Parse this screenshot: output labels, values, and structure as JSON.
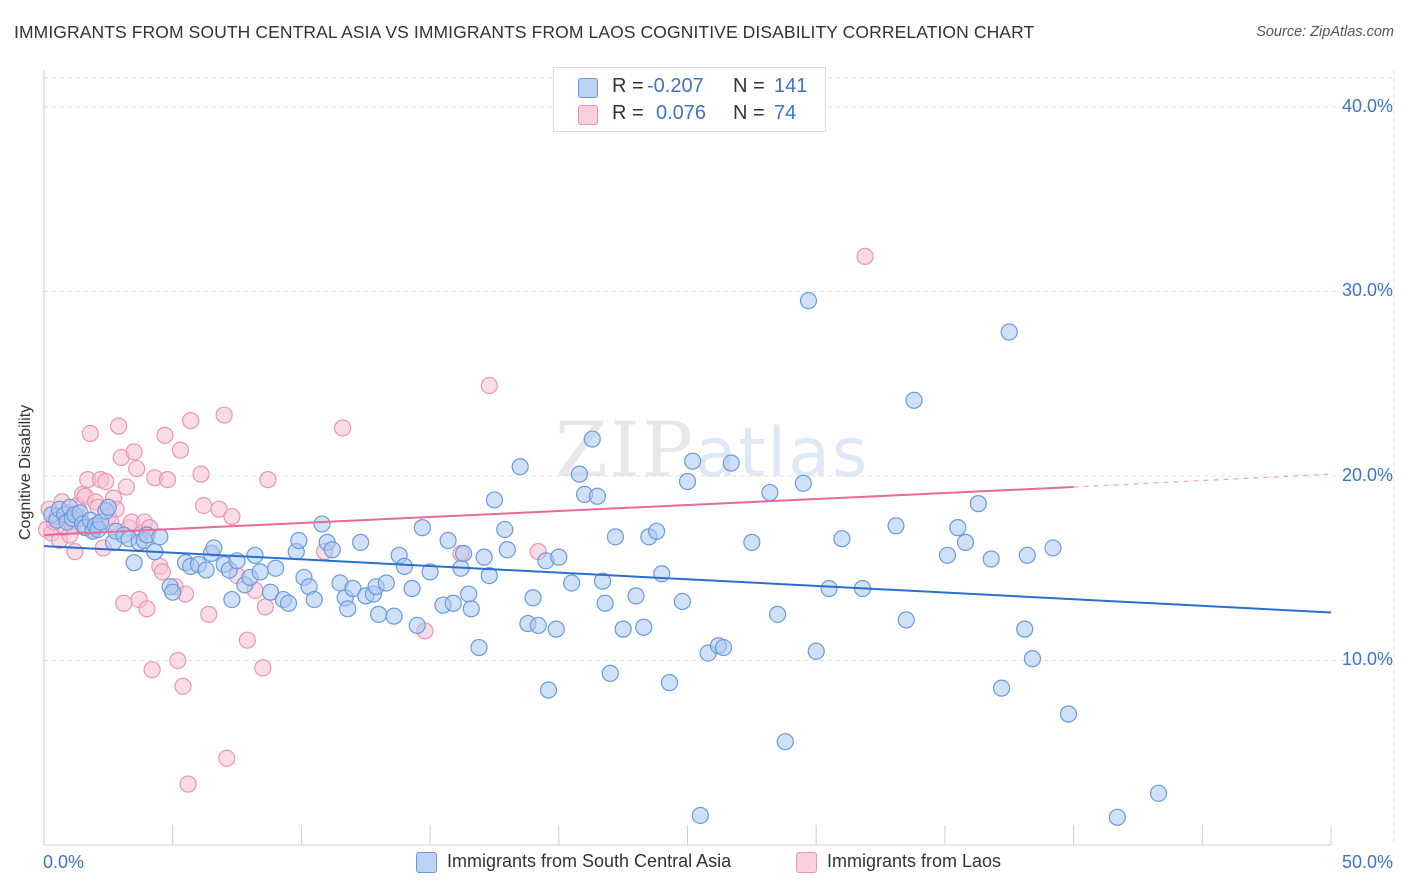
{
  "title": "IMMIGRANTS FROM SOUTH CENTRAL ASIA VS IMMIGRANTS FROM LAOS COGNITIVE DISABILITY CORRELATION CHART",
  "source": "Source: ZipAtlas.com",
  "watermark": {
    "zip": "ZIP",
    "atlas": "atlas"
  },
  "legend": {
    "rows": [
      {
        "r_label": "R =",
        "r_value": "-0.207",
        "n_label": "N =",
        "n_value": "141"
      },
      {
        "r_label": "R =",
        "r_value": "0.076",
        "n_label": "N =",
        "n_value": "74"
      }
    ]
  },
  "bottom_legend": [
    "Immigrants from South Central Asia",
    "Immigrants from Laos"
  ],
  "colors": {
    "blue_fill": "#a9c6ee",
    "blue_stroke": "#6a9be0",
    "blue_line": "#2a6fce",
    "pink_fill": "#f6bfd1",
    "pink_stroke": "#ee95b3",
    "pink_line": "#e8699a",
    "tick_text": "#3d74c9"
  },
  "chart_data": {
    "type": "scatter",
    "title": "IMMIGRANTS FROM SOUTH CENTRAL ASIA VS IMMIGRANTS FROM LAOS COGNITIVE DISABILITY CORRELATION CHART",
    "xlabel": "",
    "ylabel": "Cognitive Disability",
    "xlim": [
      0,
      50
    ],
    "ylim": [
      0,
      42
    ],
    "x_tick_labels": [
      "0.0%",
      "50.0%"
    ],
    "y_ticks": [
      10,
      20,
      30,
      40
    ],
    "y_tick_labels": [
      "10.0%",
      "20.0%",
      "30.0%",
      "40.0%"
    ],
    "grid": true,
    "legend_position": "top-center",
    "series": [
      {
        "name": "Immigrants from South Central Asia",
        "R": -0.207,
        "N": 141,
        "trend": {
          "x": [
            0,
            50
          ],
          "y": [
            16.2,
            12.6
          ],
          "dashed_extension": false
        },
        "points": [
          [
            0.3,
            17.9
          ],
          [
            0.5,
            17.6
          ],
          [
            0.6,
            18.2
          ],
          [
            0.8,
            17.9
          ],
          [
            0.9,
            17.5
          ],
          [
            1.0,
            18.3
          ],
          [
            1.1,
            17.7
          ],
          [
            1.2,
            17.9
          ],
          [
            1.4,
            18.0
          ],
          [
            1.5,
            17.4
          ],
          [
            1.6,
            17.2
          ],
          [
            1.8,
            17.6
          ],
          [
            1.9,
            17.0
          ],
          [
            2.0,
            17.3
          ],
          [
            2.1,
            17.1
          ],
          [
            2.2,
            17.5
          ],
          [
            2.4,
            18.1
          ],
          [
            2.5,
            18.3
          ],
          [
            2.7,
            16.4
          ],
          [
            2.8,
            17.0
          ],
          [
            3.1,
            16.8
          ],
          [
            3.3,
            16.6
          ],
          [
            3.5,
            15.3
          ],
          [
            3.7,
            16.4
          ],
          [
            3.9,
            16.5
          ],
          [
            4.0,
            16.8
          ],
          [
            4.3,
            15.9
          ],
          [
            4.5,
            16.7
          ],
          [
            4.9,
            14.0
          ],
          [
            5.0,
            13.7
          ],
          [
            5.5,
            15.3
          ],
          [
            5.7,
            15.1
          ],
          [
            6.0,
            15.2
          ],
          [
            6.3,
            14.9
          ],
          [
            6.5,
            15.8
          ],
          [
            6.6,
            16.1
          ],
          [
            7.0,
            15.2
          ],
          [
            7.2,
            14.9
          ],
          [
            7.3,
            13.3
          ],
          [
            7.5,
            15.4
          ],
          [
            7.8,
            14.1
          ],
          [
            8.0,
            14.5
          ],
          [
            8.2,
            15.7
          ],
          [
            8.4,
            14.8
          ],
          [
            8.8,
            13.7
          ],
          [
            9.0,
            15.0
          ],
          [
            9.3,
            13.3
          ],
          [
            9.5,
            13.1
          ],
          [
            9.8,
            15.9
          ],
          [
            9.9,
            16.5
          ],
          [
            10.1,
            14.5
          ],
          [
            10.3,
            14.0
          ],
          [
            10.5,
            13.3
          ],
          [
            10.8,
            17.4
          ],
          [
            11.0,
            16.4
          ],
          [
            11.2,
            16.0
          ],
          [
            11.5,
            14.2
          ],
          [
            11.7,
            13.4
          ],
          [
            11.8,
            12.8
          ],
          [
            12.0,
            13.9
          ],
          [
            12.3,
            16.4
          ],
          [
            12.5,
            13.5
          ],
          [
            12.8,
            13.6
          ],
          [
            12.9,
            14.0
          ],
          [
            13.0,
            12.5
          ],
          [
            13.3,
            14.2
          ],
          [
            13.6,
            12.4
          ],
          [
            13.8,
            15.7
          ],
          [
            14.0,
            15.1
          ],
          [
            14.3,
            13.9
          ],
          [
            14.5,
            11.9
          ],
          [
            14.7,
            17.2
          ],
          [
            15.0,
            14.8
          ],
          [
            15.5,
            13.0
          ],
          [
            15.7,
            16.5
          ],
          [
            15.9,
            13.1
          ],
          [
            16.2,
            15.0
          ],
          [
            16.3,
            15.8
          ],
          [
            16.5,
            13.6
          ],
          [
            16.6,
            12.8
          ],
          [
            16.9,
            10.7
          ],
          [
            17.1,
            15.6
          ],
          [
            17.3,
            14.6
          ],
          [
            17.5,
            18.7
          ],
          [
            17.9,
            17.1
          ],
          [
            18.0,
            16.0
          ],
          [
            18.5,
            20.5
          ],
          [
            18.8,
            12.0
          ],
          [
            19.0,
            13.4
          ],
          [
            19.2,
            11.9
          ],
          [
            19.5,
            15.4
          ],
          [
            19.6,
            8.4
          ],
          [
            19.9,
            11.7
          ],
          [
            20.0,
            15.6
          ],
          [
            20.5,
            14.2
          ],
          [
            20.8,
            20.1
          ],
          [
            21.0,
            19.0
          ],
          [
            21.3,
            22.0
          ],
          [
            21.5,
            18.9
          ],
          [
            21.7,
            14.3
          ],
          [
            21.8,
            13.1
          ],
          [
            22.0,
            9.3
          ],
          [
            22.2,
            16.7
          ],
          [
            22.5,
            11.7
          ],
          [
            23.0,
            13.5
          ],
          [
            23.3,
            11.8
          ],
          [
            23.5,
            16.7
          ],
          [
            23.8,
            17.0
          ],
          [
            24.0,
            14.7
          ],
          [
            24.3,
            8.8
          ],
          [
            24.8,
            13.2
          ],
          [
            25.0,
            19.7
          ],
          [
            25.2,
            20.8
          ],
          [
            25.5,
            1.6
          ],
          [
            25.8,
            10.4
          ],
          [
            26.2,
            10.8
          ],
          [
            26.4,
            10.7
          ],
          [
            26.7,
            20.7
          ],
          [
            27.5,
            16.4
          ],
          [
            28.2,
            19.1
          ],
          [
            28.5,
            12.5
          ],
          [
            28.8,
            5.6
          ],
          [
            29.5,
            19.6
          ],
          [
            29.7,
            29.5
          ],
          [
            30.0,
            10.5
          ],
          [
            30.5,
            13.9
          ],
          [
            31.0,
            16.6
          ],
          [
            31.8,
            13.9
          ],
          [
            33.1,
            17.3
          ],
          [
            33.5,
            12.2
          ],
          [
            33.8,
            24.1
          ],
          [
            35.1,
            15.7
          ],
          [
            35.5,
            17.2
          ],
          [
            35.8,
            16.4
          ],
          [
            36.3,
            18.5
          ],
          [
            36.8,
            15.5
          ],
          [
            37.2,
            8.5
          ],
          [
            37.5,
            27.8
          ],
          [
            38.1,
            11.7
          ],
          [
            38.2,
            15.7
          ],
          [
            38.4,
            10.1
          ],
          [
            39.2,
            16.1
          ],
          [
            39.8,
            7.1
          ],
          [
            41.7,
            1.5
          ],
          [
            43.3,
            2.8
          ]
        ]
      },
      {
        "name": "Immigrants from Laos",
        "R": 0.076,
        "N": 74,
        "trend": {
          "x": [
            0,
            40
          ],
          "y": [
            16.8,
            19.4
          ],
          "dashed_extension": true,
          "dashed_to_x": 50,
          "dashed_to_y": 20.1
        },
        "points": [
          [
            0.1,
            17.1
          ],
          [
            0.2,
            18.2
          ],
          [
            0.3,
            16.9
          ],
          [
            0.4,
            17.5
          ],
          [
            0.5,
            17.8
          ],
          [
            0.6,
            16.5
          ],
          [
            0.7,
            18.6
          ],
          [
            0.8,
            17.2
          ],
          [
            0.9,
            18.0
          ],
          [
            1.0,
            16.8
          ],
          [
            1.1,
            17.3
          ],
          [
            1.2,
            15.9
          ],
          [
            1.3,
            18.4
          ],
          [
            1.4,
            17.7
          ],
          [
            1.5,
            19.0
          ],
          [
            1.6,
            18.9
          ],
          [
            1.7,
            19.8
          ],
          [
            1.8,
            22.3
          ],
          [
            1.9,
            17.1
          ],
          [
            2.0,
            18.6
          ],
          [
            2.1,
            18.3
          ],
          [
            2.2,
            19.8
          ],
          [
            2.3,
            16.1
          ],
          [
            2.4,
            19.7
          ],
          [
            2.5,
            17.8
          ],
          [
            2.6,
            17.5
          ],
          [
            2.7,
            18.8
          ],
          [
            2.8,
            18.2
          ],
          [
            2.9,
            22.7
          ],
          [
            3.0,
            21.0
          ],
          [
            3.1,
            13.1
          ],
          [
            3.2,
            19.4
          ],
          [
            3.3,
            17.2
          ],
          [
            3.4,
            17.5
          ],
          [
            3.5,
            21.3
          ],
          [
            3.6,
            20.4
          ],
          [
            3.7,
            13.3
          ],
          [
            3.8,
            16.9
          ],
          [
            3.9,
            17.5
          ],
          [
            4.0,
            12.8
          ],
          [
            4.1,
            17.2
          ],
          [
            4.2,
            9.5
          ],
          [
            4.3,
            19.9
          ],
          [
            4.5,
            15.1
          ],
          [
            4.6,
            14.8
          ],
          [
            4.7,
            22.2
          ],
          [
            4.8,
            19.8
          ],
          [
            5.1,
            14.0
          ],
          [
            5.2,
            10.0
          ],
          [
            5.3,
            21.4
          ],
          [
            5.4,
            8.6
          ],
          [
            5.5,
            13.6
          ],
          [
            5.6,
            3.3
          ],
          [
            5.7,
            23.0
          ],
          [
            6.1,
            20.1
          ],
          [
            6.2,
            18.4
          ],
          [
            6.4,
            12.5
          ],
          [
            6.8,
            18.2
          ],
          [
            7.0,
            23.3
          ],
          [
            7.1,
            4.7
          ],
          [
            7.3,
            17.8
          ],
          [
            7.5,
            14.6
          ],
          [
            7.9,
            11.1
          ],
          [
            8.2,
            13.8
          ],
          [
            8.5,
            9.6
          ],
          [
            8.6,
            12.9
          ],
          [
            8.7,
            19.8
          ],
          [
            10.9,
            15.9
          ],
          [
            11.6,
            22.6
          ],
          [
            14.8,
            11.6
          ],
          [
            16.2,
            15.8
          ],
          [
            19.2,
            15.9
          ],
          [
            31.9,
            31.9
          ],
          [
            17.3,
            24.9
          ]
        ]
      }
    ]
  }
}
